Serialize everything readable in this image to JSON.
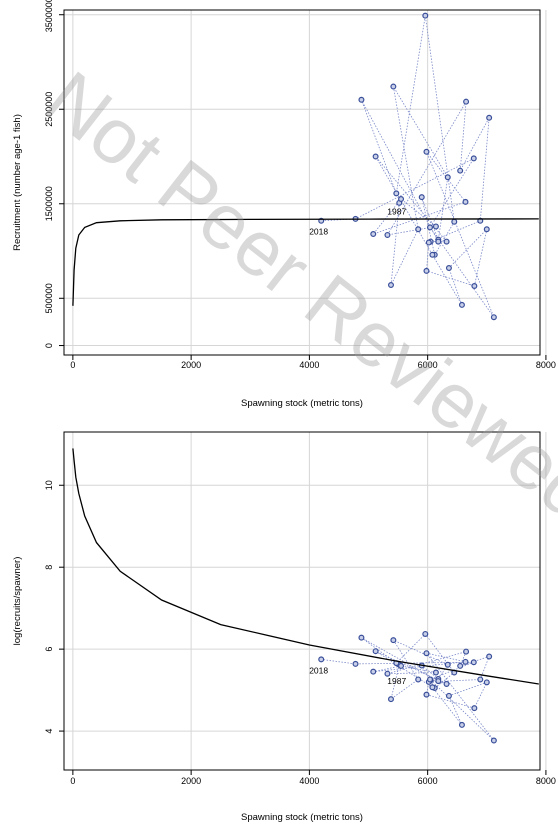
{
  "watermark": "Not Peer Reviewed",
  "chart_data": [
    {
      "type": "scatter",
      "xlabel": "Spawning stock (metric tons)",
      "ylabel": "Recruitment (number age-1 fish)",
      "xlim": [
        -150,
        7900
      ],
      "ylim": [
        -100000,
        3550000
      ],
      "xticks": [
        "0",
        "2000",
        "4000",
        "6000",
        "8000"
      ],
      "xtick_values": [
        0,
        2000,
        4000,
        6000,
        8000
      ],
      "yticks": [
        "0",
        "500000",
        "1500000",
        "2500000",
        "3500000"
      ],
      "ytick_values": [
        0,
        500000,
        1500000,
        2500000,
        3500000
      ],
      "grid": true,
      "point_color": "#3a4f9a",
      "line_color": "#7a88c8",
      "curve_color": "#000000",
      "annotations": [
        {
          "text": "2018",
          "x": 4200,
          "y": 1270000
        },
        {
          "text": "1987",
          "x": 5520,
          "y": 1480000
        }
      ],
      "series": [
        {
          "type": "connected-scatter",
          "x": [
            5520,
            5380,
            5840,
            5420,
            6340,
            6180,
            5900,
            6120,
            6450,
            5960,
            5470,
            4880,
            6180,
            6050,
            6320,
            5120,
            6080,
            6580,
            6360,
            7000,
            6790,
            5980,
            6020,
            6890,
            7040,
            6550,
            6650,
            5320,
            6140,
            5550,
            5080,
            6640,
            5980,
            7120,
            6040,
            6780,
            4780,
            4200
          ],
          "y": [
            1510000,
            640000,
            1230000,
            2740000,
            1780000,
            1120000,
            1570000,
            960000,
            1310000,
            3490000,
            1610000,
            2600000,
            1100000,
            1100000,
            1100000,
            2000000,
            960000,
            430000,
            820000,
            1230000,
            630000,
            790000,
            1090000,
            1320000,
            2410000,
            1850000,
            2580000,
            1170000,
            1260000,
            1550000,
            1180000,
            1520000,
            2050000,
            300000,
            1250000,
            1980000,
            1340000,
            1320000
          ]
        },
        {
          "type": "fitted-curve",
          "x": [
            0,
            20,
            50,
            100,
            200,
            400,
            800,
            1500,
            3000,
            5000,
            7880
          ],
          "y": [
            420000,
            800000,
            1030000,
            1170000,
            1250000,
            1300000,
            1320000,
            1330000,
            1335000,
            1338000,
            1340000
          ]
        }
      ]
    },
    {
      "type": "scatter",
      "xlabel": "Spawning stock (metric tons)",
      "ylabel": "log(recruits/spawner)",
      "xlim": [
        -150,
        7900
      ],
      "ylim": [
        3.05,
        11.3
      ],
      "xticks": [
        "0",
        "2000",
        "4000",
        "6000",
        "8000"
      ],
      "xtick_values": [
        0,
        2000,
        4000,
        6000,
        8000
      ],
      "yticks": [
        "4",
        "6",
        "8",
        "10"
      ],
      "ytick_values": [
        4,
        6,
        8,
        10
      ],
      "grid": true,
      "point_color": "#3a4f9a",
      "line_color": "#7a88c8",
      "curve_color": "#000000",
      "annotations": [
        {
          "text": "2018",
          "x": 4200,
          "y": 5.62
        },
        {
          "text": "1987",
          "x": 5520,
          "y": 5.37
        }
      ],
      "series": [
        {
          "type": "connected-scatter",
          "x": [
            5520,
            5380,
            5840,
            5420,
            6340,
            6180,
            5900,
            6120,
            6450,
            5960,
            5470,
            4880,
            6180,
            6050,
            6320,
            5120,
            6080,
            6580,
            6360,
            7000,
            6790,
            5980,
            6020,
            6890,
            7040,
            6550,
            6650,
            5320,
            6140,
            5550,
            5080,
            6640,
            5980,
            7120,
            6040,
            6780,
            4780,
            4200
          ],
          "y": [
            5.62,
            4.78,
            5.26,
            6.22,
            5.62,
            5.27,
            5.6,
            5.05,
            5.43,
            6.37,
            5.66,
            6.28,
            5.22,
            5.24,
            5.15,
            5.95,
            5.07,
            4.15,
            4.86,
            5.19,
            4.56,
            4.89,
            5.2,
            5.26,
            5.82,
            5.59,
            5.94,
            5.4,
            5.43,
            5.59,
            5.45,
            5.69,
            5.9,
            3.77,
            5.26,
            5.68,
            5.64,
            5.75
          ]
        },
        {
          "type": "fitted-curve",
          "x": [
            0,
            20,
            50,
            100,
            200,
            400,
            800,
            1500,
            2500,
            4000,
            5500,
            7000,
            7880
          ],
          "y": [
            10.9,
            10.6,
            10.2,
            9.8,
            9.25,
            8.6,
            7.9,
            7.2,
            6.6,
            6.1,
            5.7,
            5.35,
            5.15
          ]
        }
      ]
    }
  ]
}
